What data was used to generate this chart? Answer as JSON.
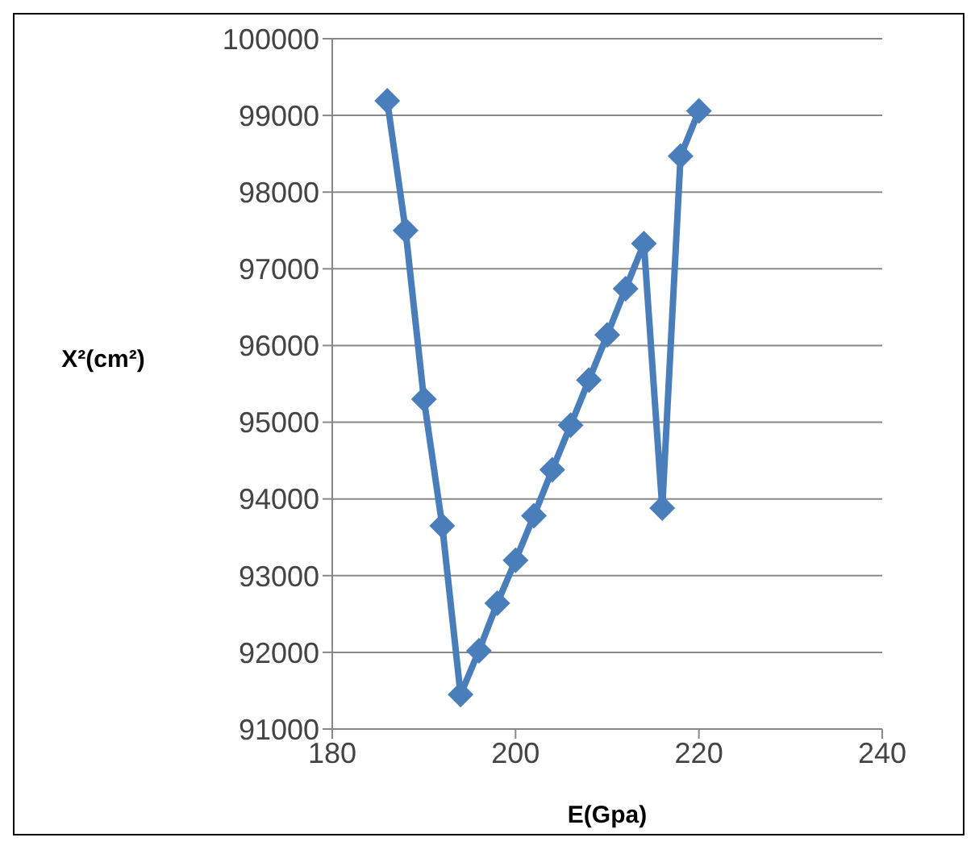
{
  "chart_data": {
    "type": "line",
    "xlabel": "E(Gpa)",
    "ylabel": "X²(cm²)",
    "x": [
      186,
      188,
      190,
      192,
      194,
      196,
      198,
      200,
      202,
      204,
      206,
      208,
      210,
      212,
      214,
      216,
      218,
      220
    ],
    "series": [
      {
        "color": "#4a7ebb",
        "values": [
          99190,
          97500,
          95300,
          93650,
          91450,
          92020,
          92640,
          93200,
          93780,
          94380,
          94960,
          95550,
          96140,
          96740,
          97330,
          93880,
          98470,
          99060
        ]
      }
    ],
    "xlim": [
      180,
      240
    ],
    "xticks": [
      180,
      200,
      220,
      240
    ],
    "ylim": [
      91000,
      100000
    ],
    "yticks": [
      91000,
      92000,
      93000,
      94000,
      95000,
      96000,
      97000,
      98000,
      99000,
      100000
    ],
    "grid": "y",
    "marker": "diamond",
    "legend": false
  }
}
